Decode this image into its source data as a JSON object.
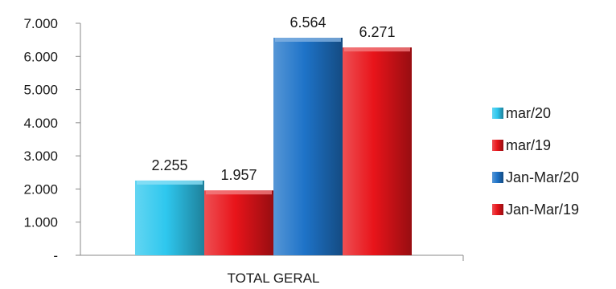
{
  "chart_data": {
    "type": "bar",
    "categories": [
      "TOTAL GERAL"
    ],
    "series": [
      {
        "name": "mar/20",
        "values": [
          2255
        ],
        "label": "2.255",
        "color": "#2ec7ee"
      },
      {
        "name": "mar/19",
        "values": [
          1957
        ],
        "label": "1.957",
        "color": "#e8141a"
      },
      {
        "name": "Jan-Mar/20",
        "values": [
          6564
        ],
        "label": "6.564",
        "color": "#1e73c8"
      },
      {
        "name": "Jan-Mar/19",
        "values": [
          6271
        ],
        "label": "6.271",
        "color": "#e8141a"
      }
    ],
    "ylim": [
      0,
      7000
    ],
    "yticks": [
      {
        "value": 0,
        "label": "-"
      },
      {
        "value": 1000,
        "label": "1.000"
      },
      {
        "value": 2000,
        "label": "2.000"
      },
      {
        "value": 3000,
        "label": "3.000"
      },
      {
        "value": 4000,
        "label": "4.000"
      },
      {
        "value": 5000,
        "label": "5.000"
      },
      {
        "value": 6000,
        "label": "6.000"
      },
      {
        "value": 7000,
        "label": "7.000"
      }
    ],
    "grid": false,
    "legend_position": "right"
  }
}
